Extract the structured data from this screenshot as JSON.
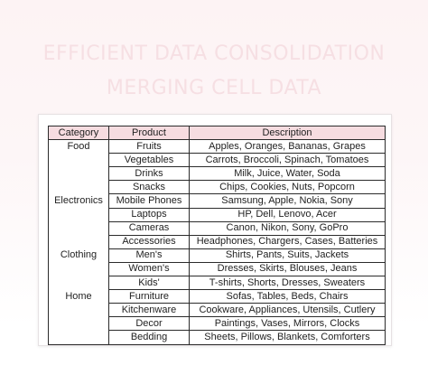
{
  "title": {
    "line1": "EFFICIENT DATA CONSOLIDATION",
    "line2": "MERGING CELL DATA"
  },
  "table": {
    "headers": [
      "Category",
      "Product",
      "Description"
    ],
    "rows": [
      [
        "Food",
        "Fruits",
        "Apples, Oranges, Bananas, Grapes"
      ],
      [
        "",
        "Vegetables",
        "Carrots, Broccoli, Spinach, Tomatoes"
      ],
      [
        "",
        "Drinks",
        "Milk, Juice, Water, Soda"
      ],
      [
        "",
        "Snacks",
        "Chips, Cookies, Nuts, Popcorn"
      ],
      [
        "Electronics",
        "Mobile Phones",
        "Samsung, Apple, Nokia, Sony"
      ],
      [
        "",
        "Laptops",
        "HP, Dell, Lenovo, Acer"
      ],
      [
        "",
        "Cameras",
        "Canon, Nikon, Sony, GoPro"
      ],
      [
        "",
        "Accessories",
        "Headphones, Chargers, Cases, Batteries"
      ],
      [
        "Clothing",
        "Men's",
        "Shirts, Pants, Suits, Jackets"
      ],
      [
        "",
        "Women's",
        "Dresses, Skirts, Blouses, Jeans"
      ],
      [
        "",
        "Kids'",
        "T-shirts, Shorts, Dresses, Sweaters"
      ],
      [
        "Home",
        "Furniture",
        "Sofas, Tables, Beds, Chairs"
      ],
      [
        "",
        "Kitchenware",
        "Cookware, Appliances, Utensils, Cutlery"
      ],
      [
        "",
        "Decor",
        "Paintings, Vases, Mirrors, Clocks"
      ],
      [
        "",
        "Bedding",
        "Sheets, Pillows, Blankets, Comforters"
      ]
    ]
  },
  "colors": {
    "header_fill": "#f6dce0",
    "title_text": "#f6dfe3",
    "background": "#fdf3f4"
  }
}
